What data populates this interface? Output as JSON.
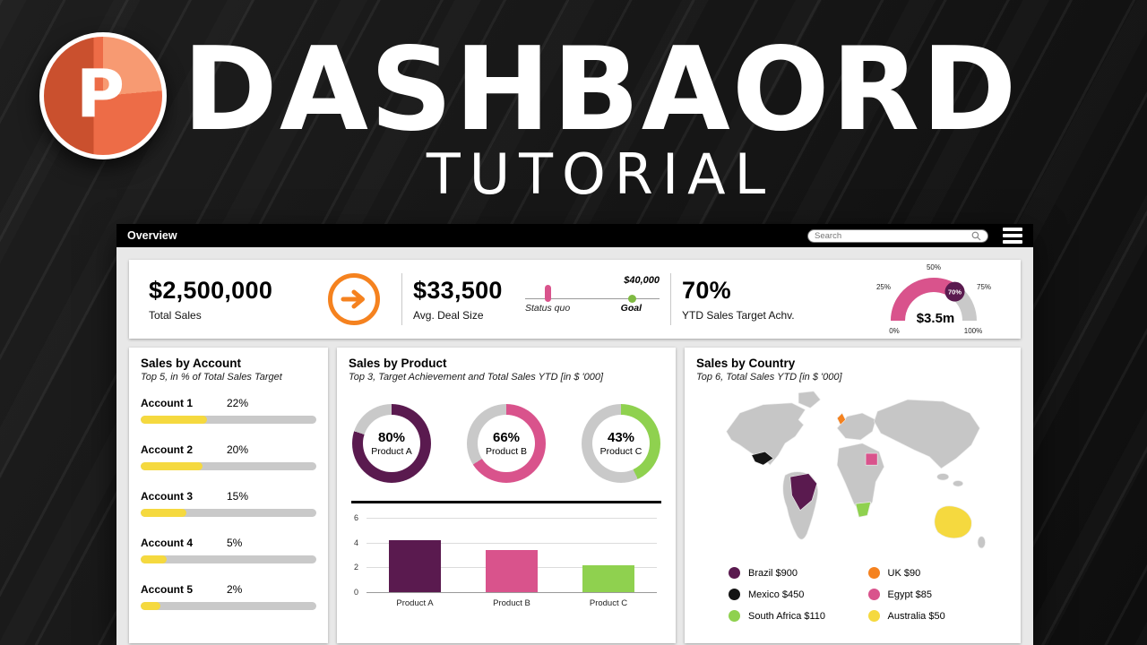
{
  "hero": {
    "logo_letter": "P",
    "title": "DASHBAORD",
    "subtitle": "TUTORIAL"
  },
  "colors": {
    "pink": "#D9538C",
    "purple": "#5A1A4F",
    "green": "#8FD14F",
    "orange": "#F5821F",
    "yellow": "#F5D93F",
    "black": "#141414",
    "track": "#C9C9C9"
  },
  "window": {
    "title": "Overview",
    "search_placeholder": "Search",
    "kpi": {
      "total_sales_value": "$2,500,000",
      "total_sales_label": "Total Sales",
      "avg_deal_value": "$33,500",
      "avg_deal_label": "Avg. Deal Size",
      "status_quo_label": "Status quo",
      "goal_value": "$40,000",
      "goal_label": "Goal",
      "ytd_value": "70%",
      "ytd_label": "YTD Sales Target Achv.",
      "gauge_percent": 70,
      "gauge_center": "$3.5m",
      "gauge_marker": "70%",
      "gauge_ticks": {
        "t0": "0%",
        "t25": "25%",
        "t50": "50%",
        "t75": "75%",
        "t100": "100%"
      }
    },
    "panels": {
      "account": {
        "title": "Sales by Account",
        "subtitle": "Top 5, in % of Total Sales Target",
        "rows": [
          {
            "name": "Account 1",
            "value": "22%",
            "fill_pct": 38
          },
          {
            "name": "Account 2",
            "value": "20%",
            "fill_pct": 35
          },
          {
            "name": "Account 3",
            "value": "15%",
            "fill_pct": 26
          },
          {
            "name": "Account 4",
            "value": "5%",
            "fill_pct": 15
          },
          {
            "name": "Account 5",
            "value": "2%",
            "fill_pct": 11
          }
        ]
      },
      "product": {
        "title": "Sales by Product",
        "subtitle": "Top 3, Target Achievement and Total Sales YTD [in $ '000]",
        "donuts": [
          {
            "percent": 80,
            "label": "80%",
            "name": "Product A",
            "color": "#5A1A4F"
          },
          {
            "percent": 66,
            "label": "66%",
            "name": "Product B",
            "color": "#D9538C"
          },
          {
            "percent": 43,
            "label": "43%",
            "name": "Product C",
            "color": "#8FD14F"
          }
        ],
        "bars": {
          "categories": [
            "Product A",
            "Product B",
            "Product C"
          ],
          "values": [
            4.2,
            3.4,
            2.2
          ],
          "colors": [
            "#5A1A4F",
            "#D9538C",
            "#8FD14F"
          ],
          "yticks": [
            6,
            4,
            2,
            0
          ],
          "ymax": 6
        }
      },
      "country": {
        "title": "Sales by Country",
        "subtitle": "Top 6, Total Sales YTD [in $ '000]",
        "legend": [
          {
            "name": "Brazil $900",
            "color": "#5A1A4F"
          },
          {
            "name": "Mexico $450",
            "color": "#141414"
          },
          {
            "name": "South Africa $110",
            "color": "#8FD14F"
          },
          {
            "name": "UK $90",
            "color": "#F5821F"
          },
          {
            "name": "Egypt $85",
            "color": "#D9538C"
          },
          {
            "name": "Australia $50",
            "color": "#F5D93F"
          }
        ]
      }
    }
  },
  "chart_data": [
    {
      "type": "bar",
      "title": "Sales by Account (Top 5, in % of Total Sales Target)",
      "categories": [
        "Account 1",
        "Account 2",
        "Account 3",
        "Account 4",
        "Account 5"
      ],
      "values": [
        22,
        20,
        15,
        5,
        2
      ],
      "ylabel": "% of Total Sales Target"
    },
    {
      "type": "pie",
      "title": "Sales by Product — Target Achievement (%)",
      "series": [
        {
          "name": "Product A",
          "value": 80
        },
        {
          "name": "Product B",
          "value": 66
        },
        {
          "name": "Product C",
          "value": 43
        }
      ]
    },
    {
      "type": "bar",
      "title": "Sales by Product — Total Sales YTD [in $ '000]",
      "categories": [
        "Product A",
        "Product B",
        "Product C"
      ],
      "values": [
        4.2,
        3.4,
        2.2
      ],
      "ylim": [
        0,
        6
      ],
      "yticks": [
        0,
        2,
        4,
        6
      ]
    },
    {
      "type": "heatmap",
      "title": "Sales by Country — Total Sales YTD [in $ '000]",
      "series": [
        {
          "name": "Brazil",
          "value": 900
        },
        {
          "name": "Mexico",
          "value": 450
        },
        {
          "name": "South Africa",
          "value": 110
        },
        {
          "name": "UK",
          "value": 90
        },
        {
          "name": "Egypt",
          "value": 85
        },
        {
          "name": "Australia",
          "value": 50
        }
      ]
    },
    {
      "type": "pie",
      "title": "YTD Sales Target Achievement gauge",
      "series": [
        {
          "name": "achieved",
          "value": 70
        },
        {
          "name": "remaining",
          "value": 30
        }
      ],
      "center_label": "$3.5m",
      "tick_labels": [
        "0%",
        "25%",
        "50%",
        "75%",
        "100%"
      ]
    }
  ]
}
